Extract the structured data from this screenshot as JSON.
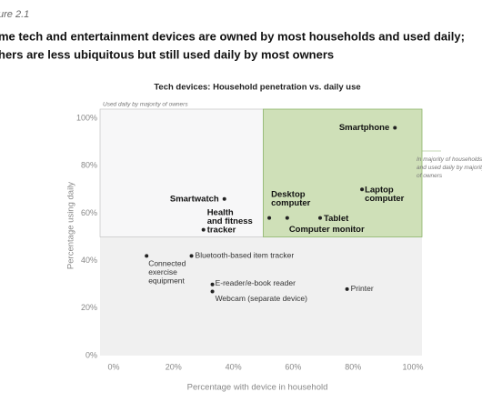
{
  "chart_data": {
    "type": "scatter",
    "figure_label": "ure 2.1",
    "title_lines": [
      "me tech and entertainment devices are owned by most households and used daily;",
      "hers are less ubiquitous but still used daily by most owners"
    ],
    "subtitle": "Tech devices: Household penetration vs. daily use",
    "xlabel": "Percentage with device in household",
    "ylabel": "Percentage using daily",
    "annotations": [
      "Used daily by majority of owners",
      "In majority of households and used daily by majority of owners"
    ],
    "series": [
      {
        "name": "Devices",
        "color": "#222222",
        "labels": [
          "Smartphone",
          "Smartwatch",
          "Health and fitness tracker",
          "Desktop computer",
          "Computer monitor",
          "Tablet",
          "Laptop computer",
          "Connected exercise equipment",
          "Bluetooth-based item tracker",
          "E-reader/e-book reader",
          "Webcam (separate device)",
          "Printer"
        ],
        "x": [
          94,
          37,
          30,
          52,
          58,
          69,
          83,
          11,
          26,
          33,
          33,
          78
        ],
        "values": [
          96,
          66,
          53,
          58,
          58,
          58,
          70,
          42,
          42,
          30,
          27,
          28
        ]
      }
    ],
    "xlim": [
      0,
      100
    ],
    "xticks": [
      {
        "value": 0,
        "label": "0%"
      },
      {
        "value": 20,
        "label": "20%"
      },
      {
        "value": 40,
        "label": "40%"
      },
      {
        "value": 60,
        "label": "60%"
      },
      {
        "value": 80,
        "label": "80%"
      },
      {
        "value": 100,
        "label": "100%"
      }
    ],
    "ylim": [
      0,
      100
    ],
    "yticks": [
      {
        "value": 0,
        "label": "0%"
      },
      {
        "value": 20,
        "label": "20%"
      },
      {
        "value": 40,
        "label": "40%"
      },
      {
        "value": 60,
        "label": "60%"
      },
      {
        "value": 80,
        "label": "80%"
      },
      {
        "value": 100,
        "label": "100%"
      }
    ],
    "threshold": 50,
    "grid": false
  }
}
